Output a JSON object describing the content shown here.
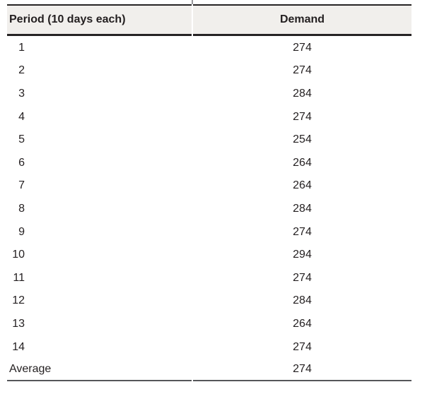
{
  "table": {
    "header": {
      "period": "Period (10 days each)",
      "demand": "Demand"
    },
    "rows": [
      {
        "period": "1",
        "demand": "274"
      },
      {
        "period": "2",
        "demand": "274"
      },
      {
        "period": "3",
        "demand": "284"
      },
      {
        "period": "4",
        "demand": "274"
      },
      {
        "period": "5",
        "demand": "254"
      },
      {
        "period": "6",
        "demand": "264"
      },
      {
        "period": "7",
        "demand": "264"
      },
      {
        "period": "8",
        "demand": "284"
      },
      {
        "period": "9",
        "demand": "274"
      },
      {
        "period": "10",
        "demand": "294"
      },
      {
        "period": "11",
        "demand": "274"
      },
      {
        "period": "12",
        "demand": "284"
      },
      {
        "period": "13",
        "demand": "264"
      },
      {
        "period": "14",
        "demand": "274"
      },
      {
        "period": "Average",
        "demand": "274"
      }
    ]
  },
  "colors": {
    "text": "#231f20",
    "header_background": "#f1efec",
    "rule_dark": "#262324",
    "rule_bottom": "#55565a",
    "top_tick": "#97979b"
  }
}
